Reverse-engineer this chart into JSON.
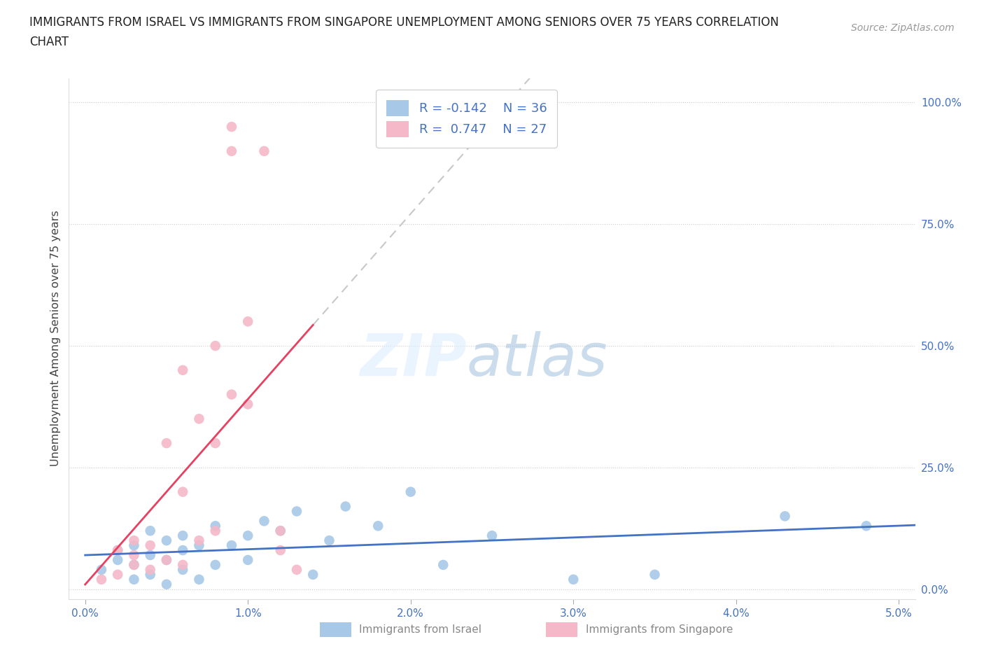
{
  "title": "IMMIGRANTS FROM ISRAEL VS IMMIGRANTS FROM SINGAPORE UNEMPLOYMENT AMONG SENIORS OVER 75 YEARS CORRELATION\nCHART",
  "source": "Source: ZipAtlas.com",
  "ylabel": "Unemployment Among Seniors over 75 years",
  "xlabel_ticks": [
    "0.0%",
    "1.0%",
    "2.0%",
    "3.0%",
    "4.0%",
    "5.0%"
  ],
  "xlabel_vals": [
    0.0,
    0.01,
    0.02,
    0.03,
    0.04,
    0.05
  ],
  "ylabel_ticks": [
    "0.0%",
    "25.0%",
    "50.0%",
    "75.0%",
    "100.0%"
  ],
  "ylabel_vals": [
    0.0,
    0.25,
    0.5,
    0.75,
    1.0
  ],
  "xlim": [
    -0.001,
    0.051
  ],
  "ylim": [
    -0.02,
    1.05
  ],
  "legend_R1": "R = -0.142",
  "legend_N1": "N = 36",
  "legend_R2": "R =  0.747",
  "legend_N2": "N = 27",
  "color_israel": "#a8c8e8",
  "color_singapore": "#f4b8c8",
  "trendline_israel_color": "#4472c4",
  "trendline_singapore_color": "#e8506080",
  "trendline_dashed_color": "#c8c8c8",
  "israel_x": [
    0.001,
    0.002,
    0.002,
    0.003,
    0.003,
    0.003,
    0.004,
    0.004,
    0.004,
    0.005,
    0.005,
    0.005,
    0.006,
    0.006,
    0.006,
    0.007,
    0.007,
    0.008,
    0.008,
    0.009,
    0.01,
    0.01,
    0.011,
    0.012,
    0.013,
    0.014,
    0.015,
    0.016,
    0.018,
    0.02,
    0.022,
    0.025,
    0.03,
    0.035,
    0.043,
    0.048
  ],
  "israel_y": [
    0.04,
    0.06,
    0.08,
    0.02,
    0.05,
    0.09,
    0.03,
    0.07,
    0.12,
    0.01,
    0.06,
    0.1,
    0.04,
    0.08,
    0.11,
    0.02,
    0.09,
    0.05,
    0.13,
    0.09,
    0.11,
    0.06,
    0.14,
    0.12,
    0.16,
    0.03,
    0.1,
    0.17,
    0.13,
    0.2,
    0.05,
    0.11,
    0.02,
    0.03,
    0.15,
    0.13
  ],
  "singapore_x": [
    0.001,
    0.002,
    0.002,
    0.003,
    0.003,
    0.003,
    0.004,
    0.004,
    0.005,
    0.005,
    0.006,
    0.006,
    0.006,
    0.007,
    0.007,
    0.008,
    0.008,
    0.008,
    0.009,
    0.009,
    0.009,
    0.01,
    0.01,
    0.011,
    0.012,
    0.012,
    0.013
  ],
  "singapore_y": [
    0.02,
    0.03,
    0.08,
    0.05,
    0.07,
    0.1,
    0.04,
    0.09,
    0.06,
    0.3,
    0.05,
    0.45,
    0.2,
    0.1,
    0.35,
    0.12,
    0.3,
    0.5,
    0.9,
    0.95,
    0.4,
    0.55,
    0.38,
    0.9,
    0.12,
    0.08,
    0.04
  ],
  "trend_singapore_x_start": 0.0,
  "trend_singapore_x_end": 0.014,
  "trend_singapore_dashed_x_end": 0.035,
  "trend_israel_x_start": 0.0,
  "trend_israel_x_end": 0.051
}
